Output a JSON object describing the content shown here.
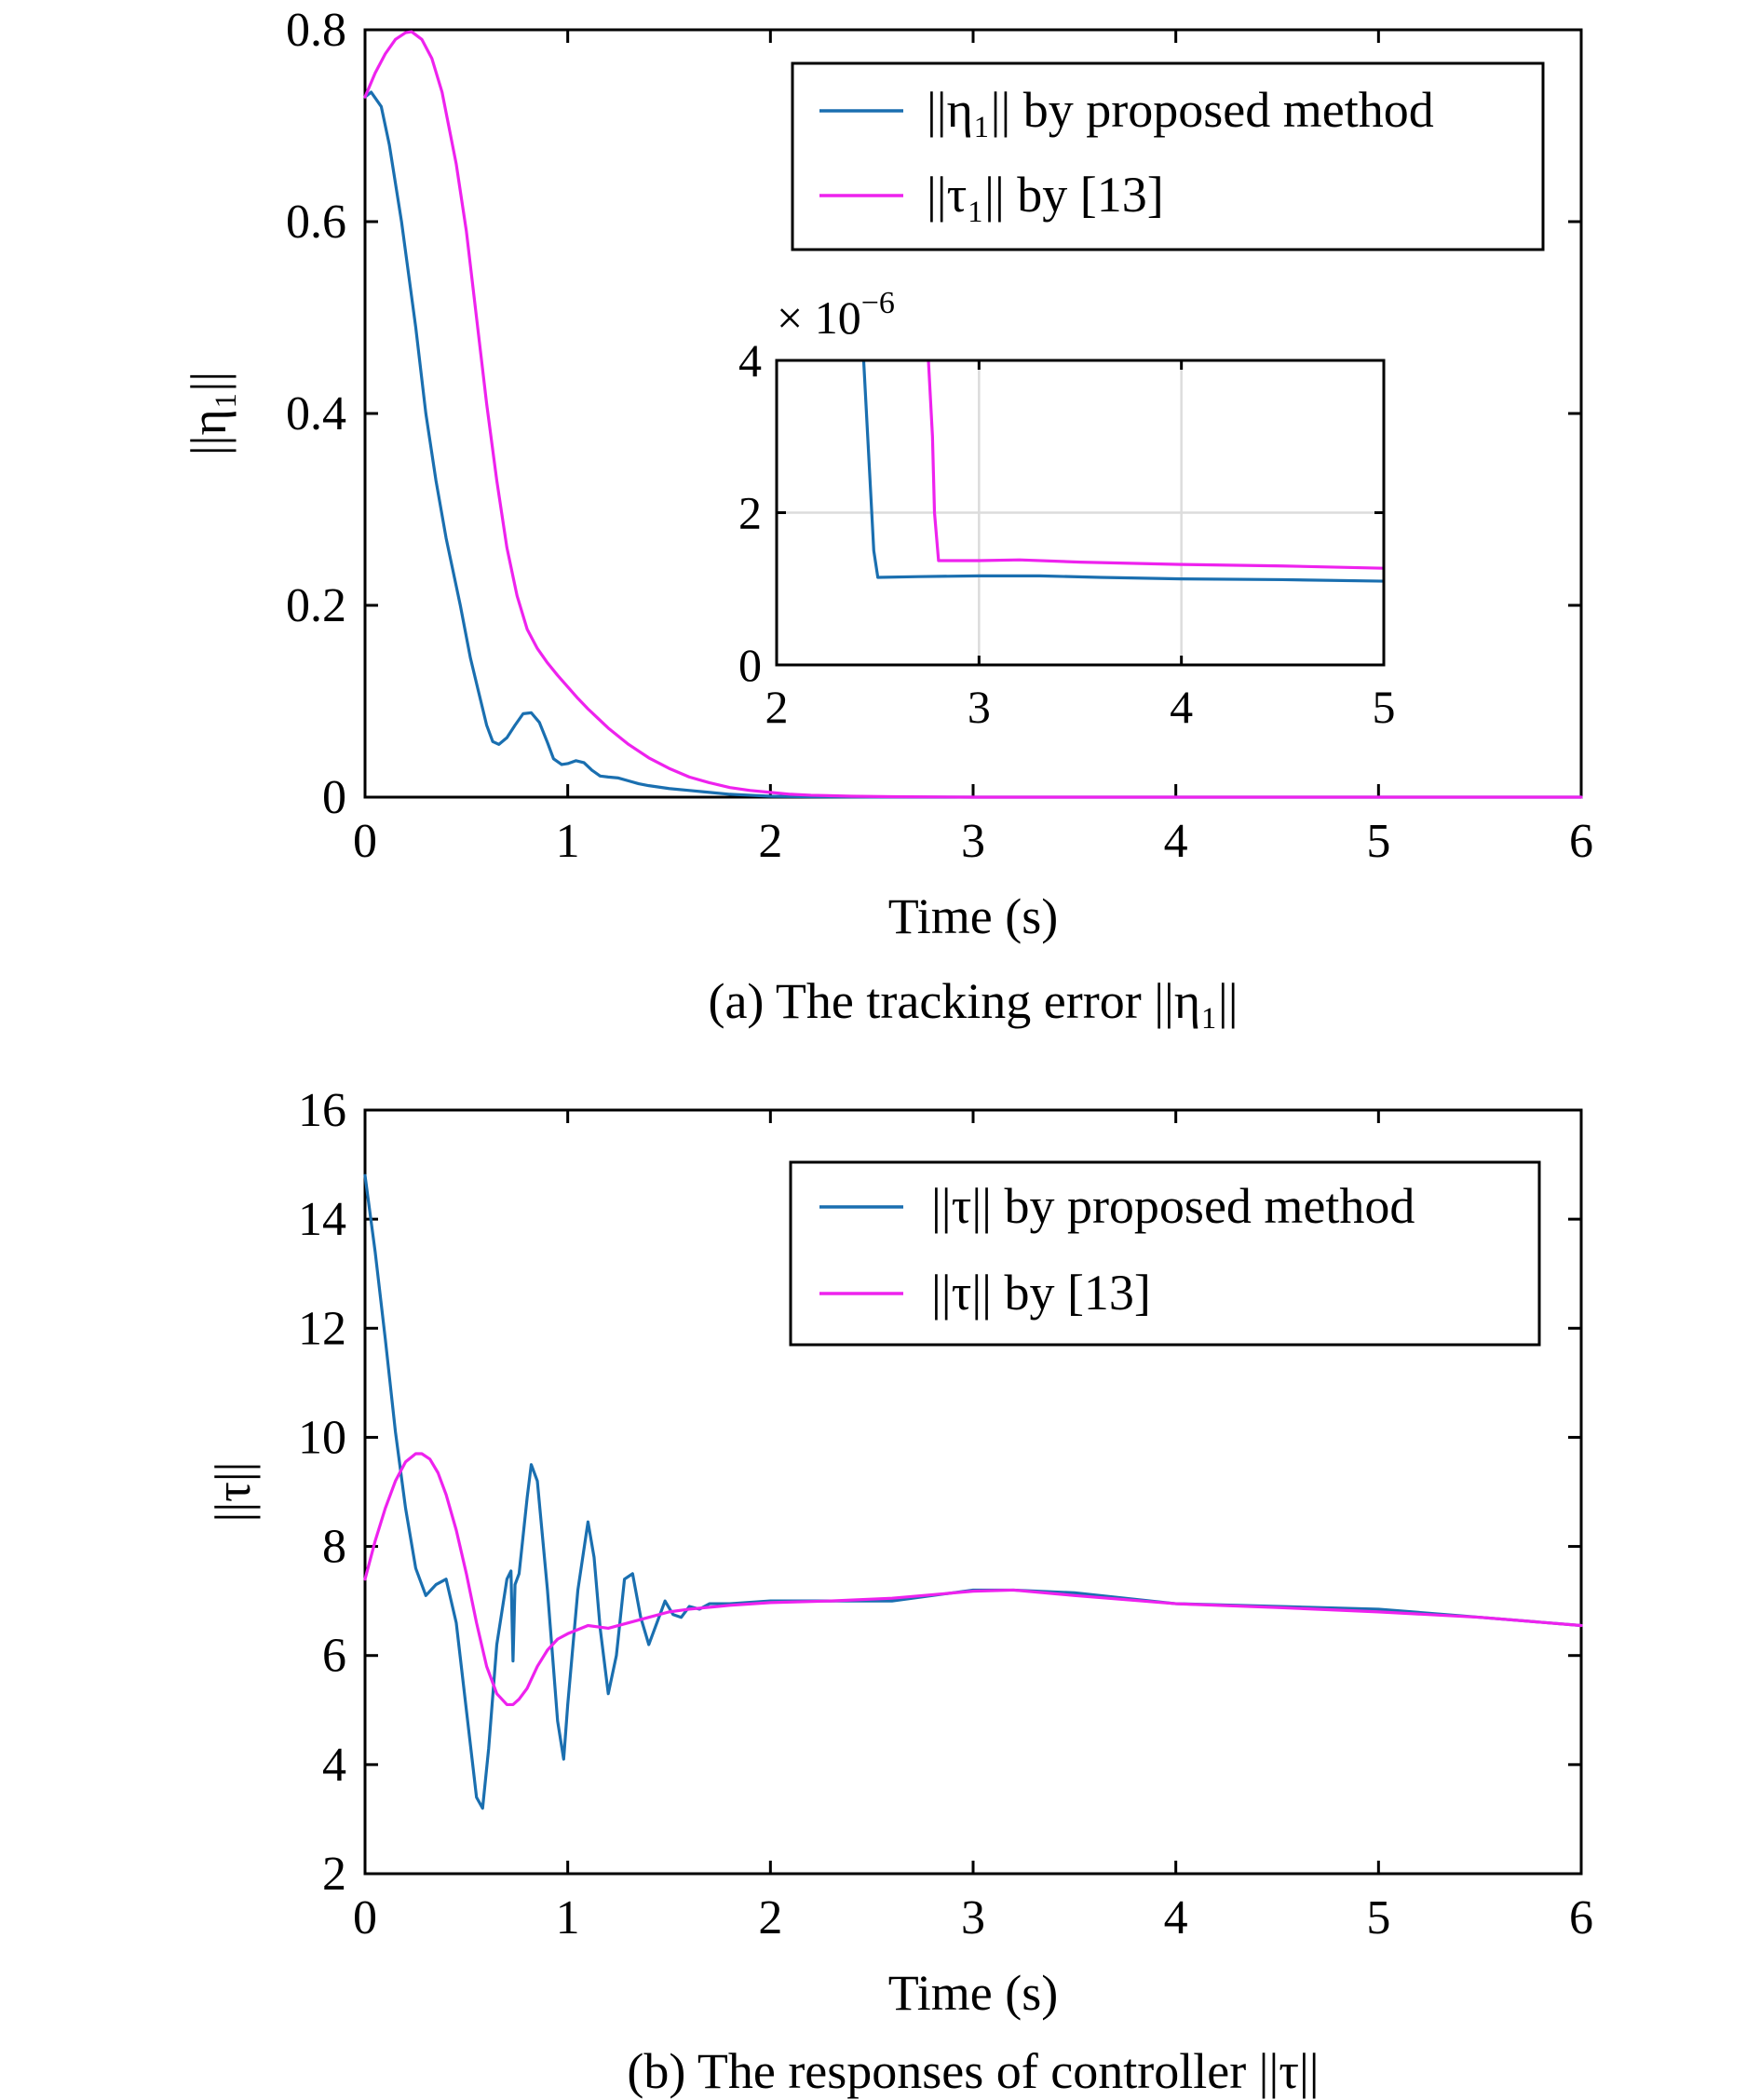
{
  "chart_data": [
    {
      "id": "a",
      "type": "line",
      "caption": "(a) The tracking error ||η₁||",
      "xlabel": "Time (s)",
      "ylabel": "||η₁||",
      "xlim": [
        0,
        6
      ],
      "ylim": [
        0,
        0.8
      ],
      "xticks": [
        0,
        1,
        2,
        3,
        4,
        5,
        6
      ],
      "yticks": [
        0,
        0.2,
        0.4,
        0.6,
        0.8
      ],
      "xtick_labels": [
        "0",
        "1",
        "2",
        "3",
        "4",
        "5",
        "6"
      ],
      "ytick_labels": [
        "0",
        "0.2",
        "0.4",
        "0.6",
        "0.8"
      ],
      "grid": false,
      "legend_position": "top-right",
      "series": [
        {
          "name": "||η₁|| by proposed method",
          "color": "#1a6fb0",
          "x": [
            0,
            0.03,
            0.08,
            0.12,
            0.18,
            0.25,
            0.3,
            0.35,
            0.4,
            0.47,
            0.52,
            0.56,
            0.6,
            0.63,
            0.66,
            0.7,
            0.74,
            0.78,
            0.82,
            0.86,
            0.9,
            0.93,
            0.97,
            1.0,
            1.04,
            1.08,
            1.12,
            1.16,
            1.2,
            1.25,
            1.3,
            1.35,
            1.4,
            1.5,
            1.6,
            1.7,
            1.8,
            1.9,
            2.0,
            2.2,
            2.5,
            3,
            4,
            5,
            6
          ],
          "y": [
            0.73,
            0.735,
            0.72,
            0.68,
            0.6,
            0.49,
            0.4,
            0.33,
            0.27,
            0.2,
            0.145,
            0.11,
            0.075,
            0.058,
            0.055,
            0.062,
            0.075,
            0.087,
            0.088,
            0.078,
            0.057,
            0.04,
            0.034,
            0.035,
            0.038,
            0.036,
            0.028,
            0.022,
            0.021,
            0.02,
            0.017,
            0.014,
            0.012,
            0.009,
            0.007,
            0.005,
            0.003,
            0.002,
            0.001,
            0.0005,
            0.0001,
            0,
            0,
            0,
            0
          ]
        },
        {
          "name": "||τ₁|| by [13]",
          "color": "#ee22ee",
          "x": [
            0,
            0.05,
            0.1,
            0.15,
            0.2,
            0.23,
            0.28,
            0.33,
            0.38,
            0.45,
            0.5,
            0.55,
            0.6,
            0.65,
            0.7,
            0.75,
            0.8,
            0.85,
            0.9,
            0.95,
            1.0,
            1.05,
            1.1,
            1.2,
            1.3,
            1.4,
            1.5,
            1.6,
            1.7,
            1.8,
            1.9,
            2.0,
            2.1,
            2.2,
            2.4,
            2.6,
            3,
            4,
            5,
            6
          ],
          "y": [
            0.73,
            0.755,
            0.775,
            0.79,
            0.797,
            0.798,
            0.79,
            0.77,
            0.735,
            0.66,
            0.59,
            0.5,
            0.41,
            0.33,
            0.26,
            0.21,
            0.175,
            0.155,
            0.14,
            0.127,
            0.115,
            0.103,
            0.092,
            0.072,
            0.055,
            0.041,
            0.03,
            0.021,
            0.015,
            0.01,
            0.007,
            0.005,
            0.003,
            0.002,
            0.001,
            0.0005,
            0,
            0,
            0,
            0
          ]
        }
      ],
      "inset": {
        "type": "line",
        "xlim": [
          2,
          5
        ],
        "ylim": [
          0,
          4
        ],
        "xticks": [
          2,
          3,
          4,
          5
        ],
        "yticks": [
          0,
          2,
          4
        ],
        "xtick_labels": [
          "2",
          "3",
          "4",
          "5"
        ],
        "ytick_labels": [
          "0",
          "2",
          "4"
        ],
        "exponent_label": "× 10",
        "exponent_power": "−6",
        "grid": true,
        "series": [
          {
            "name": "||η₁|| by proposed method",
            "color": "#1a6fb0",
            "x": [
              2.43,
              2.45,
              2.47,
              2.48,
              2.5,
              2.7,
              3.0,
              3.3,
              3.6,
              4.0,
              4.5,
              5.0
            ],
            "y": [
              4.0,
              3.0,
              2.0,
              1.5,
              1.15,
              1.16,
              1.17,
              1.17,
              1.15,
              1.13,
              1.12,
              1.1
            ]
          },
          {
            "name": "||τ₁|| by [13]",
            "color": "#ee22ee",
            "x": [
              2.75,
              2.77,
              2.78,
              2.8,
              3.0,
              3.2,
              3.5,
              4.0,
              4.5,
              5.0
            ],
            "y": [
              4.0,
              3.0,
              2.0,
              1.37,
              1.37,
              1.38,
              1.35,
              1.32,
              1.3,
              1.27
            ]
          }
        ]
      }
    },
    {
      "id": "b",
      "type": "line",
      "caption": "(b) The responses of controller ||τ||",
      "xlabel": "Time (s)",
      "ylabel": "||τ||",
      "xlim": [
        0,
        6
      ],
      "ylim": [
        2,
        16
      ],
      "xticks": [
        0,
        1,
        2,
        3,
        4,
        5,
        6
      ],
      "yticks": [
        2,
        4,
        6,
        8,
        10,
        12,
        14,
        16
      ],
      "xtick_labels": [
        "0",
        "1",
        "2",
        "3",
        "4",
        "5",
        "6"
      ],
      "ytick_labels": [
        "2",
        "4",
        "6",
        "8",
        "10",
        "12",
        "14",
        "16"
      ],
      "grid": false,
      "legend_position": "top-right",
      "series": [
        {
          "name": "||τ|| by proposed method",
          "color": "#1a6fb0",
          "x": [
            0,
            0.05,
            0.1,
            0.15,
            0.2,
            0.25,
            0.3,
            0.35,
            0.4,
            0.45,
            0.5,
            0.55,
            0.58,
            0.61,
            0.65,
            0.7,
            0.72,
            0.73,
            0.74,
            0.76,
            0.8,
            0.82,
            0.85,
            0.9,
            0.95,
            0.98,
            1.0,
            1.05,
            1.1,
            1.13,
            1.16,
            1.2,
            1.24,
            1.28,
            1.32,
            1.36,
            1.4,
            1.44,
            1.48,
            1.52,
            1.56,
            1.6,
            1.65,
            1.7,
            1.8,
            2.0,
            2.3,
            2.6,
            3.0,
            3.2,
            3.5,
            4.0,
            4.5,
            5.0,
            5.5,
            6.0
          ],
          "y": [
            14.8,
            13.4,
            11.8,
            10.1,
            8.7,
            7.6,
            7.1,
            7.3,
            7.4,
            6.6,
            5.0,
            3.4,
            3.2,
            4.3,
            6.2,
            7.4,
            7.55,
            5.9,
            7.3,
            7.5,
            8.9,
            9.5,
            9.2,
            7.2,
            4.8,
            4.1,
            5.1,
            7.2,
            8.45,
            7.8,
            6.5,
            5.3,
            6.0,
            7.4,
            7.5,
            6.7,
            6.2,
            6.6,
            7.0,
            6.75,
            6.7,
            6.9,
            6.85,
            6.95,
            6.95,
            7.0,
            7.0,
            7.0,
            7.2,
            7.2,
            7.15,
            6.95,
            6.9,
            6.85,
            6.7,
            6.55
          ]
        },
        {
          "name": "||τ|| by [13]",
          "color": "#ee22ee",
          "x": [
            0,
            0.05,
            0.1,
            0.15,
            0.2,
            0.25,
            0.28,
            0.32,
            0.36,
            0.4,
            0.45,
            0.5,
            0.55,
            0.6,
            0.65,
            0.7,
            0.73,
            0.76,
            0.8,
            0.85,
            0.9,
            0.95,
            1.0,
            1.1,
            1.2,
            1.3,
            1.4,
            1.5,
            1.6,
            1.8,
            2.0,
            2.3,
            2.6,
            3.0,
            3.2,
            3.5,
            4.0,
            4.5,
            5.0,
            5.5,
            6.0
          ],
          "y": [
            7.4,
            8.1,
            8.7,
            9.2,
            9.55,
            9.7,
            9.7,
            9.6,
            9.35,
            8.95,
            8.3,
            7.5,
            6.6,
            5.8,
            5.3,
            5.1,
            5.1,
            5.2,
            5.4,
            5.8,
            6.1,
            6.3,
            6.4,
            6.55,
            6.5,
            6.6,
            6.7,
            6.8,
            6.85,
            6.92,
            6.97,
            7.0,
            7.05,
            7.18,
            7.2,
            7.1,
            6.95,
            6.88,
            6.8,
            6.7,
            6.55
          ]
        }
      ]
    }
  ]
}
